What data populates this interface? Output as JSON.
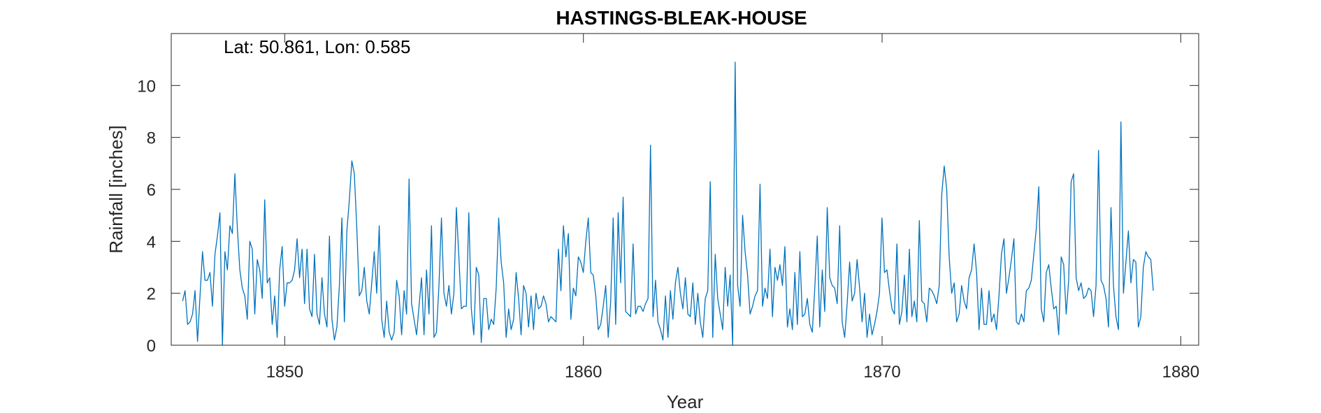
{
  "chart_data": {
    "type": "line",
    "title": "HASTINGS-BLEAK-HOUSE",
    "annotation": "Lat: 50.861, Lon: 0.585",
    "xlabel": "Year",
    "ylabel": "Rainfall [inches]",
    "xlim": [
      1846.2,
      1880.6
    ],
    "ylim": [
      0,
      12
    ],
    "xticks": [
      1850,
      1860,
      1870,
      1880
    ],
    "yticks": [
      0,
      2,
      4,
      6,
      8,
      10
    ],
    "grid": false,
    "color": "#0072BD",
    "series": [
      {
        "x_start": 1846.58,
        "x_step": 0.0833333,
        "values": [
          1.7,
          2.1,
          0.8,
          0.9,
          1.2,
          2.1,
          0.15,
          1.9,
          3.6,
          2.5,
          2.5,
          2.8,
          1.5,
          3.5,
          4.2,
          5.1,
          0.0,
          3.6,
          2.9,
          4.6,
          4.3,
          6.6,
          4.5,
          2.9,
          2.2,
          1.9,
          1.0,
          4.0,
          3.7,
          1.2,
          3.3,
          2.9,
          1.8,
          5.6,
          2.4,
          2.6,
          0.8,
          1.9,
          0.3,
          2.9,
          3.8,
          1.5,
          2.4,
          2.4,
          2.5,
          2.9,
          4.1,
          2.6,
          3.7,
          1.6,
          3.7,
          1.4,
          1.1,
          3.5,
          1.2,
          0.8,
          2.6,
          1.2,
          0.7,
          4.2,
          1.0,
          0.2,
          0.7,
          2.3,
          4.9,
          0.9,
          4.4,
          5.6,
          7.1,
          6.6,
          4.5,
          1.9,
          2.1,
          3.0,
          1.7,
          1.2,
          2.4,
          3.6,
          2.0,
          4.6,
          1.0,
          0.3,
          1.7,
          0.5,
          0.2,
          0.5,
          2.5,
          1.9,
          0.4,
          2.1,
          1.2,
          6.4,
          1.6,
          1.0,
          0.4,
          1.5,
          2.6,
          0.4,
          2.9,
          1.2,
          4.6,
          0.3,
          0.5,
          2.3,
          4.9,
          2.0,
          1.5,
          2.3,
          1.2,
          2.0,
          5.3,
          3.4,
          1.4,
          1.5,
          1.5,
          5.1,
          1.4,
          0.4,
          3.0,
          2.7,
          0.1,
          1.8,
          1.8,
          0.6,
          1.0,
          0.8,
          2.2,
          4.9,
          3.2,
          2.4,
          0.3,
          1.4,
          0.6,
          1.0,
          2.8,
          1.8,
          0.4,
          2.3,
          2.0,
          0.7,
          1.9,
          0.6,
          2.0,
          1.4,
          1.5,
          1.9,
          1.6,
          0.9,
          1.1,
          1.0,
          0.9,
          3.7,
          2.1,
          4.6,
          3.4,
          4.3,
          1.0,
          2.2,
          1.9,
          3.4,
          3.2,
          2.8,
          4.0,
          4.9,
          2.8,
          2.7,
          1.9,
          0.6,
          0.8,
          1.5,
          2.3,
          0.3,
          1.7,
          4.9,
          0.8,
          5.1,
          2.4,
          5.7,
          1.3,
          1.2,
          1.1,
          3.9,
          1.2,
          1.5,
          1.5,
          1.3,
          1.6,
          1.8,
          7.7,
          1.1,
          2.5,
          0.9,
          0.6,
          0.2,
          1.9,
          0.3,
          2.1,
          1.0,
          2.4,
          3.0,
          2.0,
          1.4,
          2.6,
          1.2,
          1.1,
          2.4,
          0.8,
          2.0,
          0.9,
          0.3,
          1.8,
          2.1,
          6.3,
          0.3,
          3.5,
          1.8,
          1.2,
          0.6,
          3.0,
          1.5,
          2.7,
          0.0,
          10.9,
          2.3,
          1.5,
          5.0,
          3.6,
          2.7,
          1.2,
          1.5,
          1.9,
          2.1,
          6.2,
          1.5,
          2.2,
          1.8,
          3.7,
          1.1,
          3.0,
          2.5,
          3.1,
          2.3,
          3.8,
          0.7,
          1.4,
          0.6,
          2.8,
          0.8,
          3.6,
          1.1,
          1.2,
          1.8,
          0.8,
          0.5,
          2.2,
          4.2,
          0.7,
          2.9,
          1.3,
          5.3,
          2.6,
          2.3,
          2.2,
          1.6,
          4.6,
          0.9,
          0.3,
          1.6,
          3.2,
          1.7,
          2.0,
          3.3,
          2.2,
          0.9,
          2.0,
          0.3,
          1.2,
          0.4,
          0.8,
          1.3,
          2.0,
          4.9,
          2.8,
          2.9,
          2.1,
          1.4,
          1.2,
          3.9,
          0.8,
          1.3,
          2.7,
          0.9,
          3.7,
          1.1,
          1.7,
          0.9,
          4.8,
          1.7,
          1.6,
          0.9,
          2.2,
          2.1,
          1.9,
          1.6,
          2.3,
          5.8,
          6.9,
          6.0,
          3.4,
          2.0,
          2.4,
          0.9,
          1.2,
          2.3,
          1.7,
          1.4,
          2.6,
          2.9,
          3.9,
          2.8,
          0.6,
          2.2,
          0.8,
          0.8,
          2.1,
          0.9,
          1.2,
          0.6,
          1.9,
          3.5,
          4.1,
          2.0,
          2.6,
          3.3,
          4.1,
          0.9,
          0.8,
          1.2,
          0.9,
          2.1,
          2.2,
          2.5,
          3.5,
          4.5,
          6.1,
          1.4,
          0.9,
          2.8,
          3.1,
          2.2,
          1.4,
          1.5,
          0.4,
          3.4,
          3.1,
          1.2,
          2.5,
          6.3,
          6.6,
          2.6,
          2.1,
          2.4,
          1.8,
          1.9,
          2.2,
          2.1,
          1.1,
          2.3,
          7.5,
          2.5,
          2.3,
          1.8,
          0.7,
          5.3,
          2.3,
          1.1,
          0.6,
          8.6,
          2.0,
          3.2,
          4.4,
          2.4,
          3.3,
          3.2,
          0.7,
          1.1,
          3.0,
          3.6,
          3.4,
          3.3,
          2.1
        ]
      }
    ]
  }
}
